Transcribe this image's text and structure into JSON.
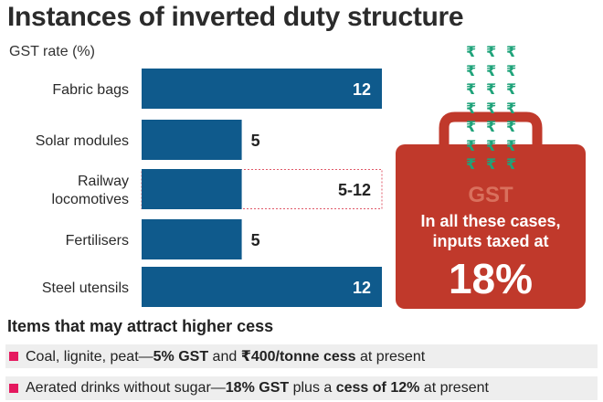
{
  "title": "Instances of inverted duty structure",
  "unit_label": "GST rate (%)",
  "chart_data": {
    "type": "bar",
    "orientation": "horizontal",
    "categories": [
      "Fabric bags",
      "Solar modules",
      "Railway locomotives",
      "Fertilisers",
      "Steel utensils"
    ],
    "values": [
      12,
      5,
      [
        5,
        12
      ],
      5,
      12
    ],
    "value_labels": [
      "12",
      "5",
      "5-12",
      "5",
      "12"
    ],
    "xlim": [
      0,
      12
    ],
    "bar_color": "#0f5a8c",
    "range_outline_color": "#e05a6a"
  },
  "bag": {
    "symbol": "₹",
    "symbol_color": "#1fa37a",
    "label": "GST",
    "text_line1": "In all these cases,",
    "text_line2": "inputs taxed at",
    "big_value": "18%",
    "color": "#c0392b"
  },
  "cess": {
    "title": "Items that may attract higher cess",
    "bullet_color": "#e5195f",
    "rows": [
      {
        "a": "Coal, lignite, peat—",
        "b": "5% GST",
        "c": " and ",
        "d": "₹400/tonne cess",
        "e": " at present"
      },
      {
        "a": "Aerated drinks without sugar—",
        "b": "18% GST",
        "c": " plus a ",
        "d": "cess of 12%",
        "e": " at present"
      }
    ]
  }
}
